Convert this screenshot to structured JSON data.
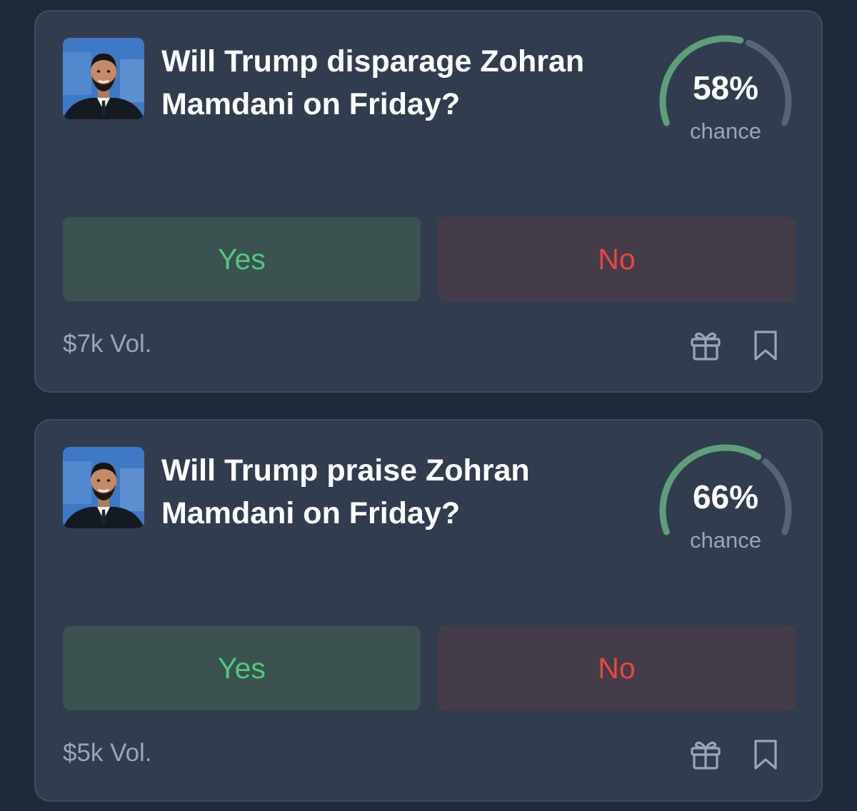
{
  "markets": [
    {
      "question": "Will Trump disparage Zohran Mamdani on Friday?",
      "chance_value": 58,
      "chance_label": "58%",
      "chance_text": "chance",
      "yes_label": "Yes",
      "no_label": "No",
      "volume": "$7k Vol."
    },
    {
      "question": "Will Trump praise Zohran Mamdani on Friday?",
      "chance_value": 66,
      "chance_label": "66%",
      "chance_text": "chance",
      "yes_label": "Yes",
      "no_label": "No",
      "volume": "$5k Vol."
    }
  ],
  "colors": {
    "gauge_fill": "#5f9e7a",
    "gauge_track": "#556478",
    "yes_text": "#4ec97a",
    "no_text": "#e5483f"
  },
  "icons": [
    "gift-icon",
    "bookmark-icon"
  ]
}
